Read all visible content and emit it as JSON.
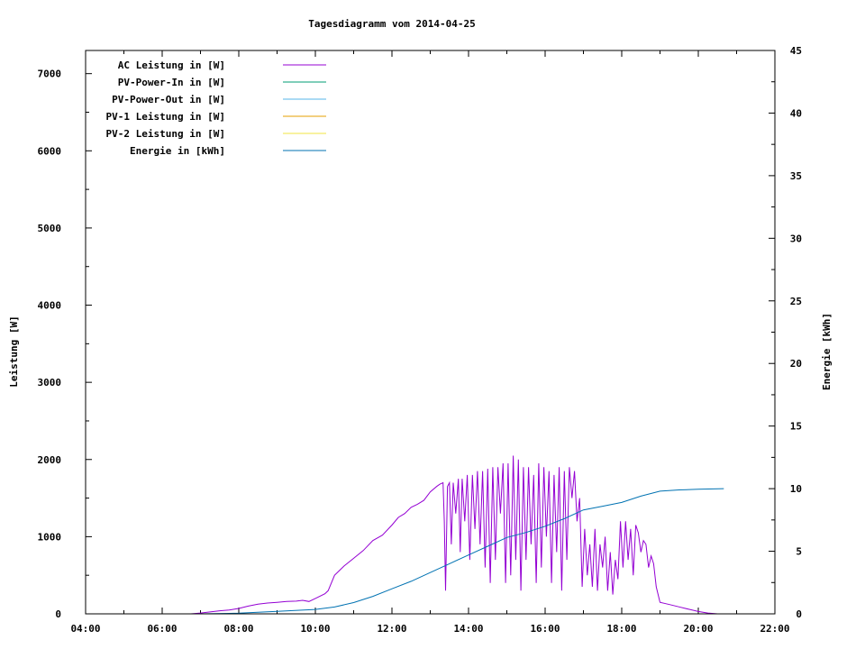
{
  "chart_data": {
    "type": "line",
    "title": "Tagesdiagramm vom 2014-04-25",
    "ylabel": "Leistung [W]",
    "y2label": "Energie [kWh]",
    "xlabel": "",
    "xlim": [
      "04:00",
      "22:00"
    ],
    "ylim": [
      0,
      7300
    ],
    "y2lim": [
      0,
      45
    ],
    "x_ticks": [
      "04:00",
      "06:00",
      "08:00",
      "10:00",
      "12:00",
      "14:00",
      "16:00",
      "18:00",
      "20:00",
      "22:00"
    ],
    "y_ticks": [
      "0",
      "1000",
      "2000",
      "3000",
      "4000",
      "5000",
      "6000",
      "7000"
    ],
    "y2_ticks": [
      "0",
      "5",
      "10",
      "15",
      "20",
      "25",
      "30",
      "35",
      "40",
      "45"
    ],
    "grid": false,
    "legend_position": "top-left",
    "series": [
      {
        "name": "AC Leistung in [W]",
        "axis": "y",
        "color": "#9400d3",
        "points": [
          [
            "06:45",
            0
          ],
          [
            "07:00",
            10
          ],
          [
            "07:15",
            25
          ],
          [
            "07:30",
            40
          ],
          [
            "07:45",
            50
          ],
          [
            "08:00",
            70
          ],
          [
            "08:15",
            100
          ],
          [
            "08:30",
            125
          ],
          [
            "08:45",
            140
          ],
          [
            "09:00",
            150
          ],
          [
            "09:15",
            160
          ],
          [
            "09:30",
            165
          ],
          [
            "09:40",
            175
          ],
          [
            "09:50",
            160
          ],
          [
            "10:00",
            200
          ],
          [
            "10:15",
            260
          ],
          [
            "10:20",
            300
          ],
          [
            "10:30",
            500
          ],
          [
            "10:45",
            620
          ],
          [
            "11:00",
            720
          ],
          [
            "11:15",
            820
          ],
          [
            "11:30",
            950
          ],
          [
            "11:45",
            1020
          ],
          [
            "12:00",
            1150
          ],
          [
            "12:10",
            1250
          ],
          [
            "12:20",
            1300
          ],
          [
            "12:30",
            1380
          ],
          [
            "12:40",
            1420
          ],
          [
            "12:50",
            1470
          ],
          [
            "13:00",
            1580
          ],
          [
            "13:10",
            1650
          ],
          [
            "13:15",
            1680
          ],
          [
            "13:20",
            1700
          ],
          [
            "13:22",
            1200
          ],
          [
            "13:24",
            300
          ],
          [
            "13:27",
            1650
          ],
          [
            "13:30",
            1700
          ],
          [
            "13:33",
            900
          ],
          [
            "13:36",
            1700
          ],
          [
            "13:40",
            1300
          ],
          [
            "13:44",
            1750
          ],
          [
            "13:47",
            800
          ],
          [
            "13:50",
            1750
          ],
          [
            "13:54",
            1200
          ],
          [
            "13:58",
            1800
          ],
          [
            "14:02",
            700
          ],
          [
            "14:06",
            1800
          ],
          [
            "14:10",
            1100
          ],
          [
            "14:14",
            1850
          ],
          [
            "14:18",
            900
          ],
          [
            "14:22",
            1850
          ],
          [
            "14:26",
            600
          ],
          [
            "14:30",
            1880
          ],
          [
            "14:34",
            400
          ],
          [
            "14:38",
            1900
          ],
          [
            "14:42",
            700
          ],
          [
            "14:46",
            1900
          ],
          [
            "14:50",
            1300
          ],
          [
            "14:54",
            1950
          ],
          [
            "14:58",
            400
          ],
          [
            "15:02",
            1950
          ],
          [
            "15:06",
            500
          ],
          [
            "15:10",
            2050
          ],
          [
            "15:14",
            700
          ],
          [
            "15:18",
            2000
          ],
          [
            "15:22",
            300
          ],
          [
            "15:26",
            1900
          ],
          [
            "15:30",
            700
          ],
          [
            "15:34",
            1900
          ],
          [
            "15:38",
            900
          ],
          [
            "15:42",
            1800
          ],
          [
            "15:46",
            400
          ],
          [
            "15:50",
            1950
          ],
          [
            "15:54",
            600
          ],
          [
            "15:58",
            1900
          ],
          [
            "16:02",
            1000
          ],
          [
            "16:06",
            1850
          ],
          [
            "16:10",
            400
          ],
          [
            "16:14",
            1800
          ],
          [
            "16:18",
            800
          ],
          [
            "16:22",
            1900
          ],
          [
            "16:26",
            300
          ],
          [
            "16:30",
            1850
          ],
          [
            "16:34",
            700
          ],
          [
            "16:38",
            1900
          ],
          [
            "16:42",
            1500
          ],
          [
            "16:46",
            1850
          ],
          [
            "16:50",
            1200
          ],
          [
            "16:54",
            1500
          ],
          [
            "16:58",
            350
          ],
          [
            "17:02",
            1100
          ],
          [
            "17:06",
            500
          ],
          [
            "17:10",
            900
          ],
          [
            "17:14",
            350
          ],
          [
            "17:18",
            1100
          ],
          [
            "17:22",
            300
          ],
          [
            "17:26",
            900
          ],
          [
            "17:30",
            600
          ],
          [
            "17:34",
            1000
          ],
          [
            "17:38",
            300
          ],
          [
            "17:42",
            800
          ],
          [
            "17:46",
            250
          ],
          [
            "17:50",
            700
          ],
          [
            "17:54",
            450
          ],
          [
            "17:58",
            1200
          ],
          [
            "18:02",
            600
          ],
          [
            "18:06",
            1200
          ],
          [
            "18:10",
            700
          ],
          [
            "18:14",
            1100
          ],
          [
            "18:18",
            500
          ],
          [
            "18:22",
            1150
          ],
          [
            "18:26",
            1050
          ],
          [
            "18:30",
            800
          ],
          [
            "18:34",
            950
          ],
          [
            "18:38",
            900
          ],
          [
            "18:42",
            600
          ],
          [
            "18:46",
            750
          ],
          [
            "18:50",
            650
          ],
          [
            "18:54",
            350
          ],
          [
            "19:00",
            150
          ],
          [
            "19:15",
            120
          ],
          [
            "19:30",
            90
          ],
          [
            "19:45",
            60
          ],
          [
            "20:00",
            30
          ],
          [
            "20:15",
            10
          ],
          [
            "20:30",
            0
          ]
        ]
      },
      {
        "name": "PV-Power-In in [W]",
        "axis": "y",
        "color": "#009e73",
        "points": []
      },
      {
        "name": "PV-Power-Out in [W]",
        "axis": "y",
        "color": "#56b4e9",
        "points": []
      },
      {
        "name": "PV-1 Leistung in [W]",
        "axis": "y",
        "color": "#e69f00",
        "points": []
      },
      {
        "name": "PV-2 Leistung in [W]",
        "axis": "y",
        "color": "#f0e442",
        "points": []
      },
      {
        "name": "Energie in [kWh]",
        "axis": "y2",
        "color": "#0072b2",
        "points": [
          [
            "07:00",
            0
          ],
          [
            "08:00",
            0.05
          ],
          [
            "09:00",
            0.2
          ],
          [
            "10:00",
            0.35
          ],
          [
            "10:30",
            0.55
          ],
          [
            "11:00",
            0.9
          ],
          [
            "11:30",
            1.4
          ],
          [
            "12:00",
            2.0
          ],
          [
            "12:30",
            2.6
          ],
          [
            "13:00",
            3.3
          ],
          [
            "13:30",
            4.0
          ],
          [
            "14:00",
            4.7
          ],
          [
            "14:30",
            5.4
          ],
          [
            "15:00",
            6.1
          ],
          [
            "15:30",
            6.5
          ],
          [
            "16:00",
            7.0
          ],
          [
            "16:30",
            7.6
          ],
          [
            "17:00",
            8.3
          ],
          [
            "17:30",
            8.6
          ],
          [
            "18:00",
            8.9
          ],
          [
            "18:30",
            9.4
          ],
          [
            "19:00",
            9.8
          ],
          [
            "19:30",
            9.9
          ],
          [
            "20:00",
            9.95
          ],
          [
            "20:40",
            10.0
          ]
        ]
      }
    ]
  }
}
